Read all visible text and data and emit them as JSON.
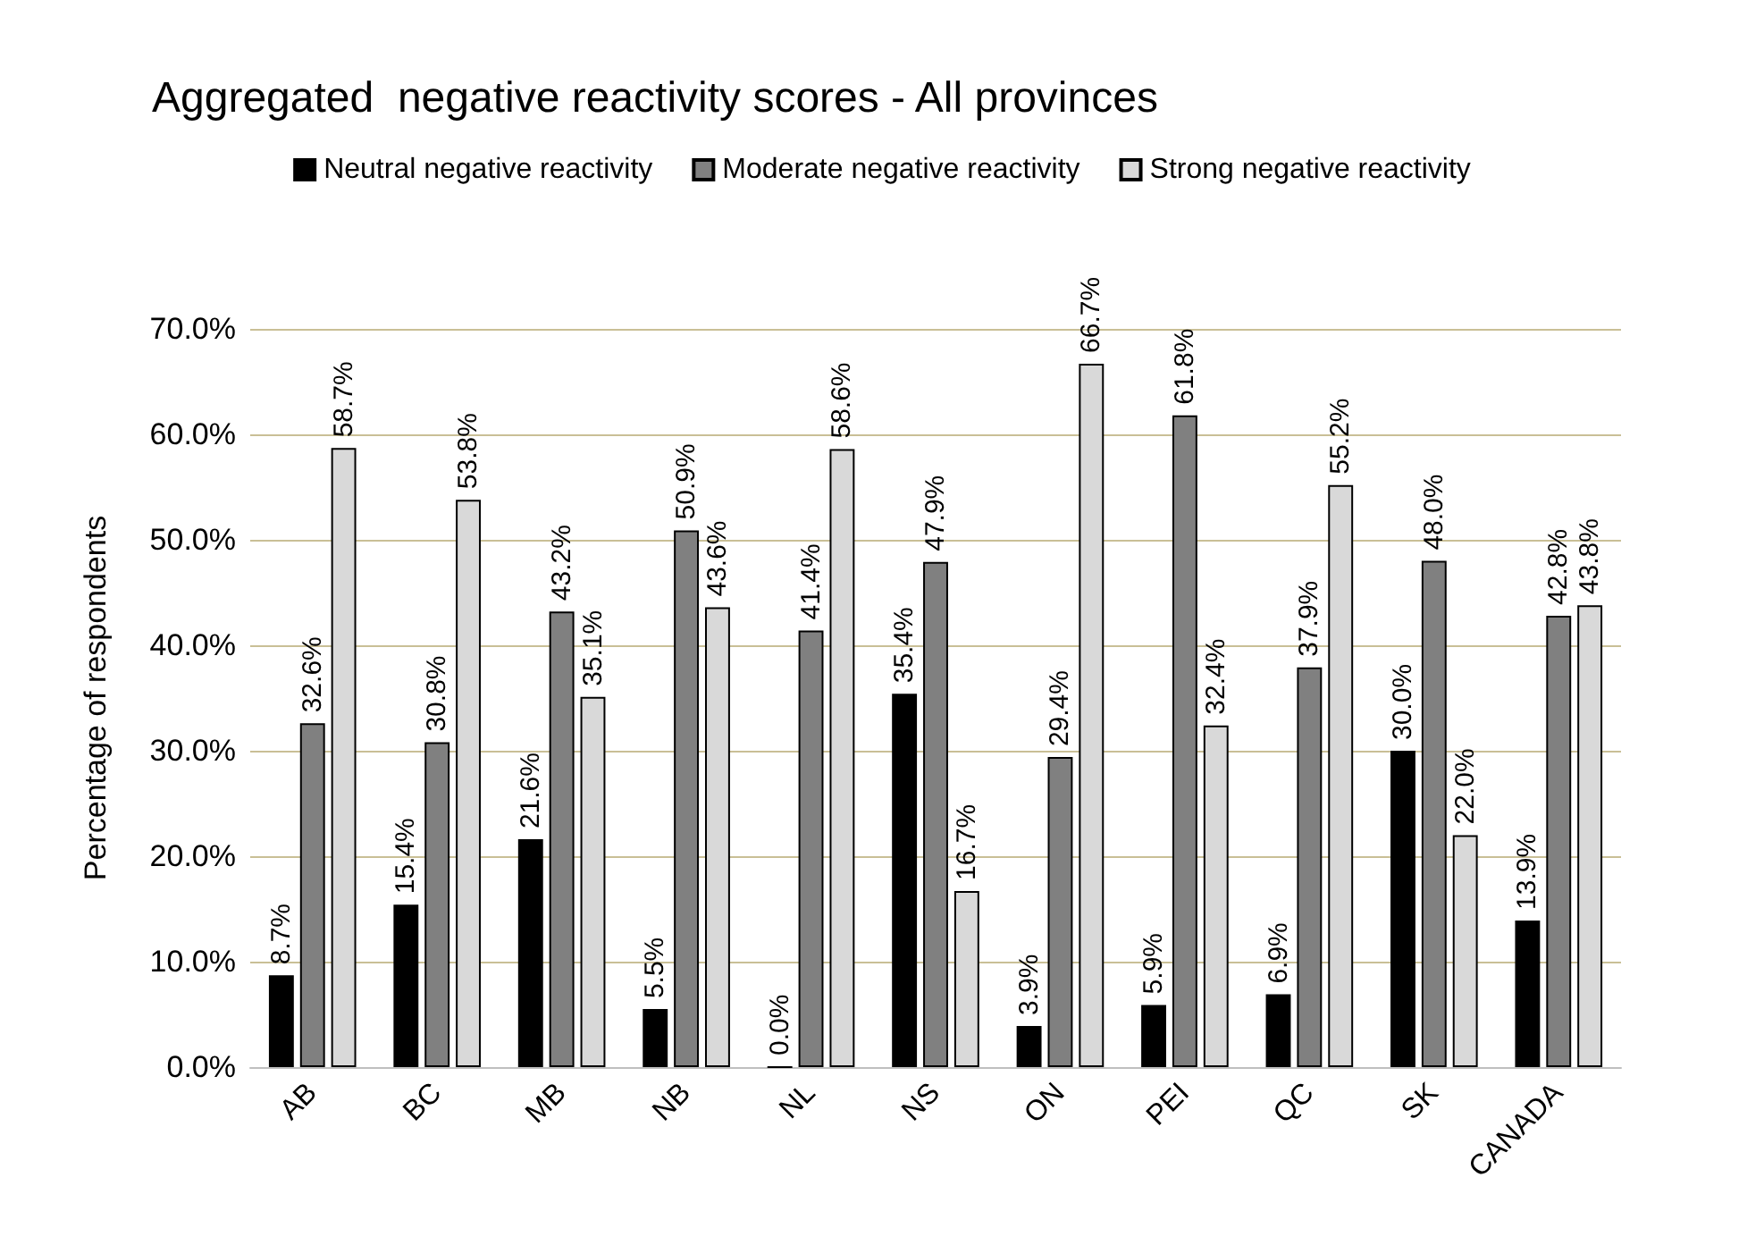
{
  "chart_data": {
    "type": "bar",
    "title": "Aggregated  negative reactivity scores - All provinces",
    "ylabel": "Percentage of respondents",
    "categories": [
      "AB",
      "BC",
      "MB",
      "NB",
      "NL",
      "NS",
      "ON",
      "PEI",
      "QC",
      "SK",
      "CANADA"
    ],
    "series": [
      {
        "name": "Neutral negative reactivity",
        "color": "#000000",
        "values": [
          8.7,
          15.4,
          21.6,
          5.5,
          0.0,
          35.4,
          3.9,
          5.9,
          6.9,
          30.0,
          13.9
        ],
        "value_labels": [
          "8.7%",
          "15.4%",
          "21.6%",
          "5.5%",
          "0.0%",
          "35.4%",
          "3.9%",
          "5.9%",
          "6.9%",
          "30.0%",
          "13.9%"
        ]
      },
      {
        "name": "Moderate negative reactivity",
        "color": "#808080",
        "values": [
          32.6,
          30.8,
          43.2,
          50.9,
          41.4,
          47.9,
          29.4,
          61.8,
          37.9,
          48.0,
          42.8
        ],
        "value_labels": [
          "32.6%",
          "30.8%",
          "43.2%",
          "50.9%",
          "41.4%",
          "47.9%",
          "29.4%",
          "61.8%",
          "37.9%",
          "48.0%",
          "42.8%"
        ]
      },
      {
        "name": "Strong negative reactivity",
        "color": "#d9d9d9",
        "values": [
          58.7,
          53.8,
          35.1,
          43.6,
          58.6,
          16.7,
          66.7,
          32.4,
          55.2,
          22.0,
          43.8
        ],
        "value_labels": [
          "58.7%",
          "53.8%",
          "35.1%",
          "43.6%",
          "58.6%",
          "16.7%",
          "66.7%",
          "32.4%",
          "55.2%",
          "22.0%",
          "43.8%"
        ]
      }
    ],
    "ylim": [
      0,
      70
    ],
    "yticks": [
      {
        "value": 0,
        "label": "0.0%"
      },
      {
        "value": 10,
        "label": "10.0%"
      },
      {
        "value": 20,
        "label": "20.0%"
      },
      {
        "value": 30,
        "label": "30.0%"
      },
      {
        "value": 40,
        "label": "40.0%"
      },
      {
        "value": 50,
        "label": "50.0%"
      },
      {
        "value": 60,
        "label": "60.0%"
      },
      {
        "value": 70,
        "label": "70.0%"
      }
    ],
    "grid": "y",
    "legend": "top"
  }
}
